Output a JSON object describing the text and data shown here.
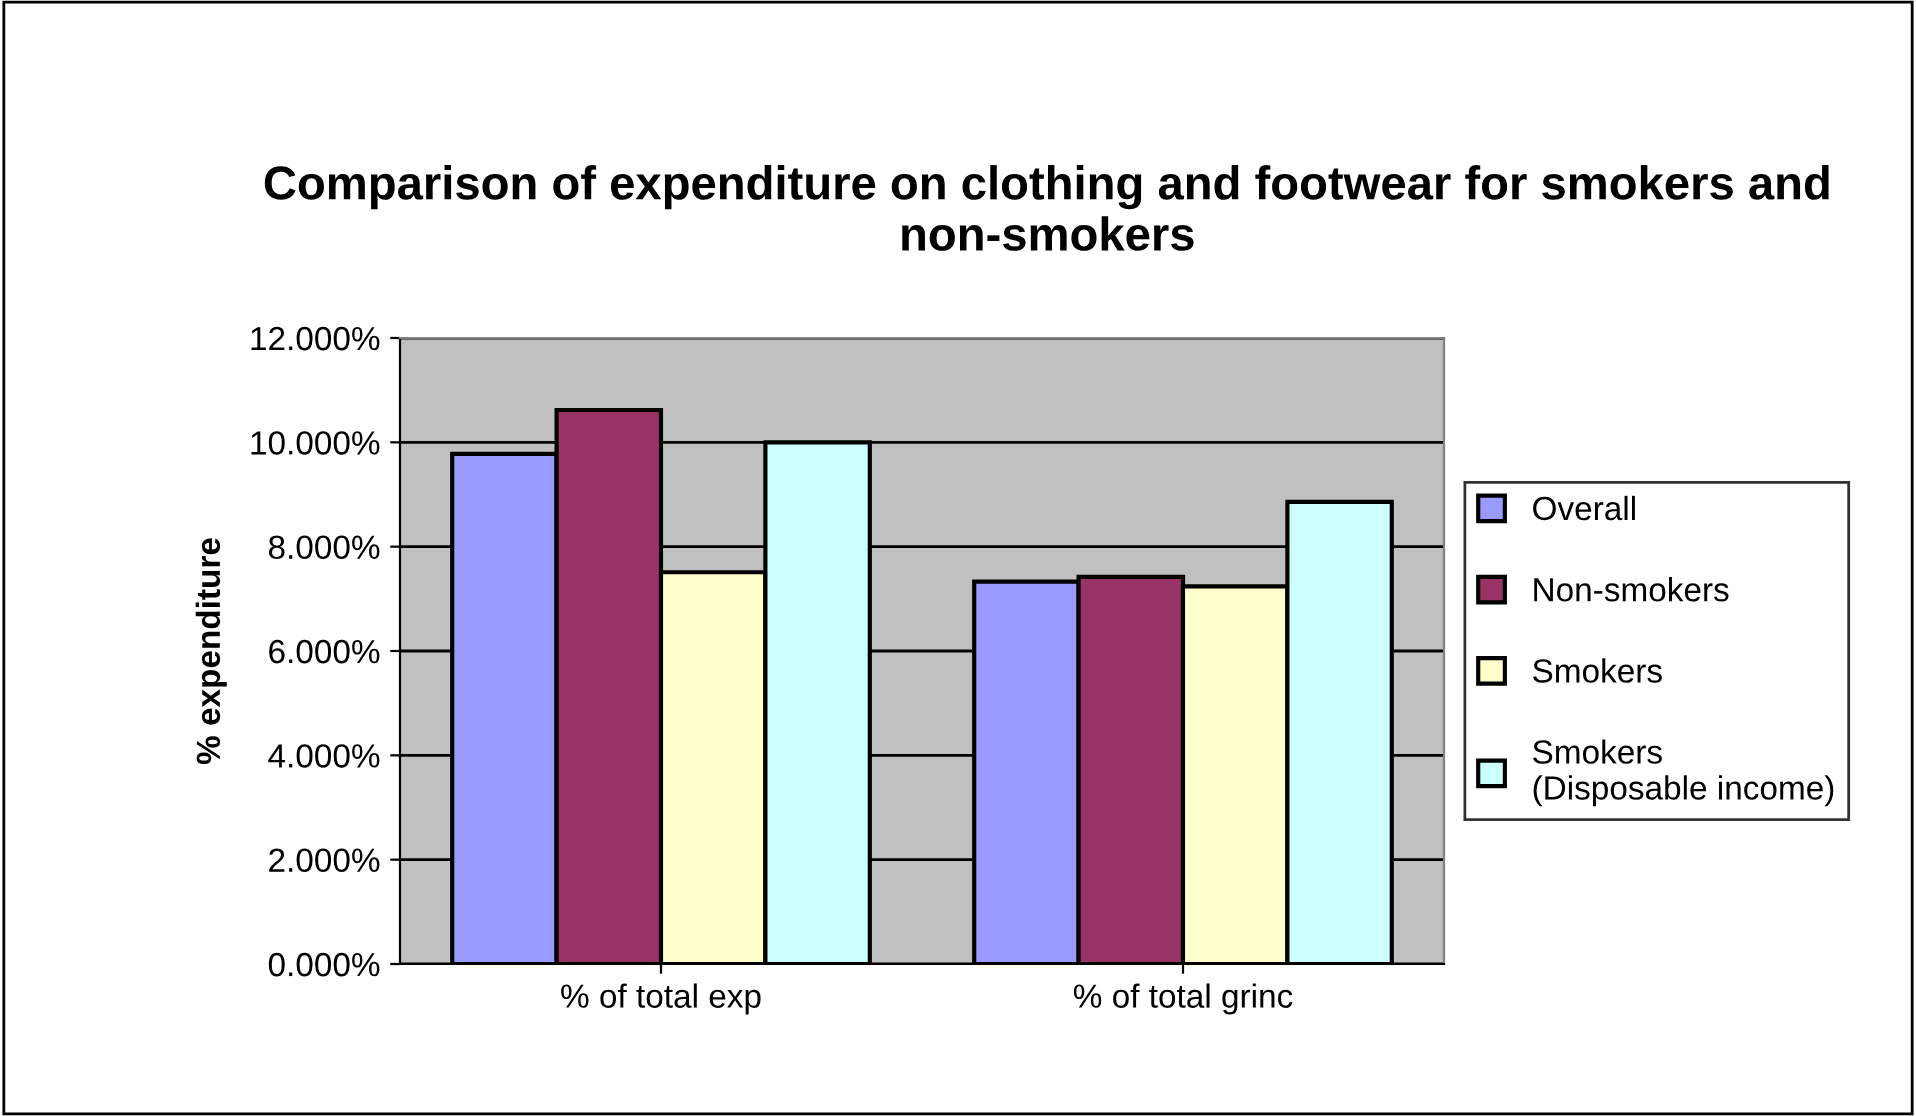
{
  "chart_data": {
    "type": "bar",
    "title": "Comparison of expenditure on clothing and footwear for smokers and non-smokers",
    "ylabel": "% expenditure",
    "categories": [
      "% of total exp",
      "% of total grinc"
    ],
    "series": [
      {
        "name": "Overall",
        "color": "#9999ff",
        "values": [
          9.78,
          7.33
        ]
      },
      {
        "name": "Non-smokers",
        "color": "#993366",
        "values": [
          10.62,
          7.42
        ]
      },
      {
        "name": "Smokers",
        "color": "#ffffcc",
        "values": [
          7.51,
          7.24
        ]
      },
      {
        "name": "Smokers (Disposable income)",
        "color": "#ccffff",
        "values": [
          10.0,
          8.86
        ]
      }
    ],
    "ylim": [
      0,
      12
    ],
    "yticks": [
      {
        "value": 0,
        "label": "0.000%"
      },
      {
        "value": 2,
        "label": "2.000%"
      },
      {
        "value": 4,
        "label": "4.000%"
      },
      {
        "value": 6,
        "label": "6.000%"
      },
      {
        "value": 8,
        "label": "8.000%"
      },
      {
        "value": 10,
        "label": "10.000%"
      },
      {
        "value": 12,
        "label": "12.000%"
      }
    ],
    "grid": "y",
    "legend": "right"
  }
}
